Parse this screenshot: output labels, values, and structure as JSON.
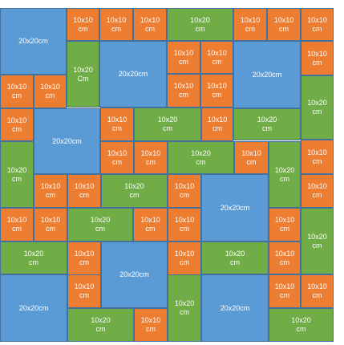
{
  "colors": {
    "small": "#ed7d31",
    "medium": "#70ad47",
    "large": "#5b9bd5",
    "border": "#41719c"
  },
  "tiles": [
    {
      "label": "20x20cm",
      "kind": "large"
    },
    {
      "label": "10x10\ncm",
      "kind": "small"
    },
    {
      "label": "10x10\ncm",
      "kind": "small"
    },
    {
      "label": "10x10\ncm",
      "kind": "small"
    },
    {
      "label": "10x20\ncm",
      "kind": "medium"
    },
    {
      "label": "10x10\ncm",
      "kind": "small"
    },
    {
      "label": "10x10\ncm",
      "kind": "small"
    },
    {
      "label": "10x10\ncm",
      "kind": "small"
    },
    {
      "label": "10x20\nCm",
      "kind": "medium"
    },
    {
      "label": "20x20cm",
      "kind": "large"
    },
    {
      "label": "10x10\ncm",
      "kind": "small"
    },
    {
      "label": "10x10\ncm",
      "kind": "small"
    },
    {
      "label": "20x20cm",
      "kind": "large"
    },
    {
      "label": "10x10\ncm",
      "kind": "small"
    },
    {
      "label": "10x10\ncm",
      "kind": "small"
    },
    {
      "label": "10x10\ncm",
      "kind": "small"
    },
    {
      "label": "10x10\ncm",
      "kind": "small"
    },
    {
      "label": "10x10\ncm",
      "kind": "small"
    },
    {
      "label": "10x20\ncm",
      "kind": "medium"
    },
    {
      "label": "10x10\ncm",
      "kind": "small"
    },
    {
      "label": "20x20cm",
      "kind": "large"
    },
    {
      "label": "10x10\ncm",
      "kind": "small"
    },
    {
      "label": "10x20\ncm",
      "kind": "medium"
    },
    {
      "label": "10x10\ncm",
      "kind": "small"
    },
    {
      "label": "10x20\ncm",
      "kind": "medium"
    },
    {
      "label": "10x20\ncm",
      "kind": "medium"
    },
    {
      "label": "10x10\ncm",
      "kind": "small"
    },
    {
      "label": "10x10\ncm",
      "kind": "small"
    },
    {
      "label": "10x20\ncm",
      "kind": "medium"
    },
    {
      "label": "10x10\ncm",
      "kind": "small"
    },
    {
      "label": "10x20\ncm",
      "kind": "medium"
    },
    {
      "label": "10x10\ncm",
      "kind": "small"
    },
    {
      "label": "10x10\ncm",
      "kind": "small"
    },
    {
      "label": "10x10\ncm",
      "kind": "small"
    },
    {
      "label": "10x20\ncm",
      "kind": "medium"
    },
    {
      "label": "10x10\ncm",
      "kind": "small"
    },
    {
      "label": "20x20cm",
      "kind": "large"
    },
    {
      "label": "10x10\ncm",
      "kind": "small"
    },
    {
      "label": "10x10\ncm",
      "kind": "small"
    },
    {
      "label": "10x10\ncm",
      "kind": "small"
    },
    {
      "label": "10x20\ncm",
      "kind": "medium"
    },
    {
      "label": "10x10\ncm",
      "kind": "small"
    },
    {
      "label": "10x10\ncm",
      "kind": "small"
    },
    {
      "label": "10x10\ncm",
      "kind": "small"
    },
    {
      "label": "10x20\ncm",
      "kind": "medium"
    },
    {
      "label": "10x20\ncm",
      "kind": "medium"
    },
    {
      "label": "10x10\ncm",
      "kind": "small"
    },
    {
      "label": "20x20cm",
      "kind": "large"
    },
    {
      "label": "10x10\ncm",
      "kind": "small"
    },
    {
      "label": "10x20\ncm",
      "kind": "medium"
    },
    {
      "label": "10x10\ncm",
      "kind": "small"
    },
    {
      "label": "20x20cm",
      "kind": "large"
    },
    {
      "label": "10x10\ncm",
      "kind": "small"
    },
    {
      "label": "10x20\ncm",
      "kind": "medium"
    },
    {
      "label": "20x20cm",
      "kind": "large"
    },
    {
      "label": "10x10\ncm",
      "kind": "small"
    },
    {
      "label": "10x10\ncm",
      "kind": "small"
    },
    {
      "label": "10x20\ncm",
      "kind": "medium"
    },
    {
      "label": "10x10\ncm",
      "kind": "small"
    },
    {
      "label": "10x20\ncm",
      "kind": "medium"
    }
  ]
}
